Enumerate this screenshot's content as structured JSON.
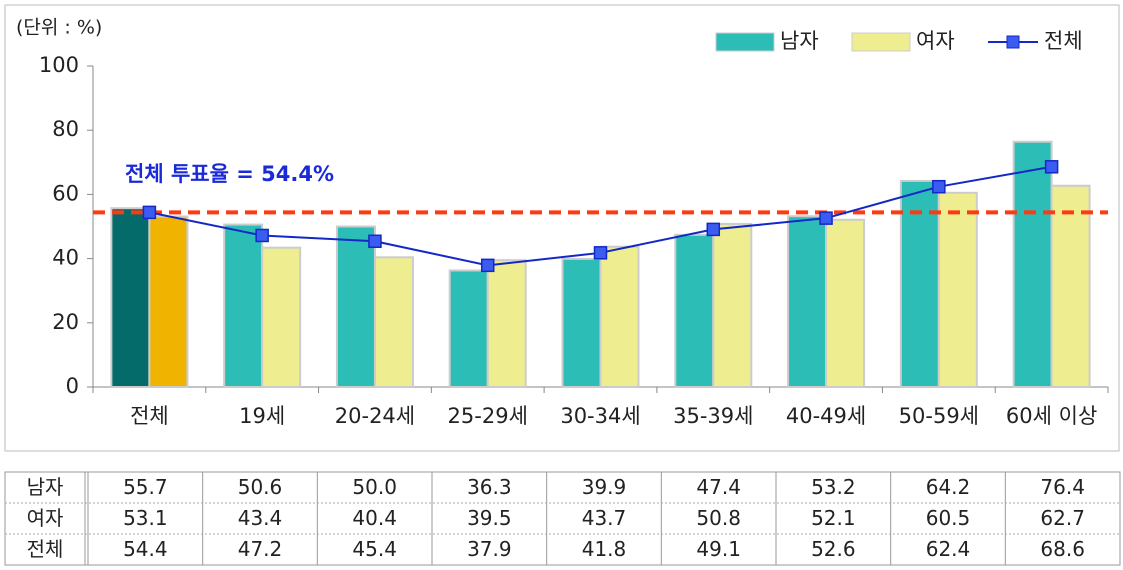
{
  "chart_data": {
    "type": "bar_line",
    "unit_label": "(단위 : %)",
    "categories": [
      "전체",
      "19세",
      "20-24세",
      "25-29세",
      "30-34세",
      "35-39세",
      "40-49세",
      "50-59세",
      "60세 이상"
    ],
    "series": [
      {
        "name": "남자",
        "kind": "bar",
        "color": "#2bbdb6",
        "highlight_color": "#046a6a",
        "values": [
          55.7,
          50.6,
          50,
          36.3,
          39.9,
          47.4,
          53.2,
          64.2,
          76.4
        ],
        "value_labels": [
          "55.7",
          "50.6",
          "50.0",
          "36.3",
          "39.9",
          "47.4",
          "53.2",
          "64.2",
          "76.4"
        ]
      },
      {
        "name": "여자",
        "kind": "bar",
        "color": "#eeee90",
        "highlight_color": "#f0b400",
        "values": [
          53.1,
          43.4,
          40.4,
          39.5,
          43.7,
          50.8,
          52.1,
          60.5,
          62.7
        ],
        "value_labels": [
          "53.1",
          "43.4",
          "40.4",
          "39.5",
          "43.7",
          "50.8",
          "52.1",
          "60.5",
          "62.7"
        ]
      },
      {
        "name": "전체",
        "kind": "line",
        "color": "#1428c8",
        "marker_color": "#3a5cf0",
        "values": [
          54.4,
          47.2,
          45.4,
          37.9,
          41.8,
          49.1,
          52.6,
          62.4,
          68.6
        ],
        "value_labels": [
          "54.4",
          "47.2",
          "45.4",
          "37.9",
          "41.8",
          "49.1",
          "52.6",
          "62.4",
          "68.6"
        ]
      }
    ],
    "highlight_index": 0,
    "reference_line": {
      "value": 54.4,
      "color": "#ff3a10",
      "label": "전체 투표율 = 54.4%",
      "label_color": "#1a2ad8"
    },
    "ylim": [
      0,
      100
    ],
    "yticks": [
      0,
      20,
      40,
      60,
      80,
      100
    ],
    "legend": "top-right"
  }
}
